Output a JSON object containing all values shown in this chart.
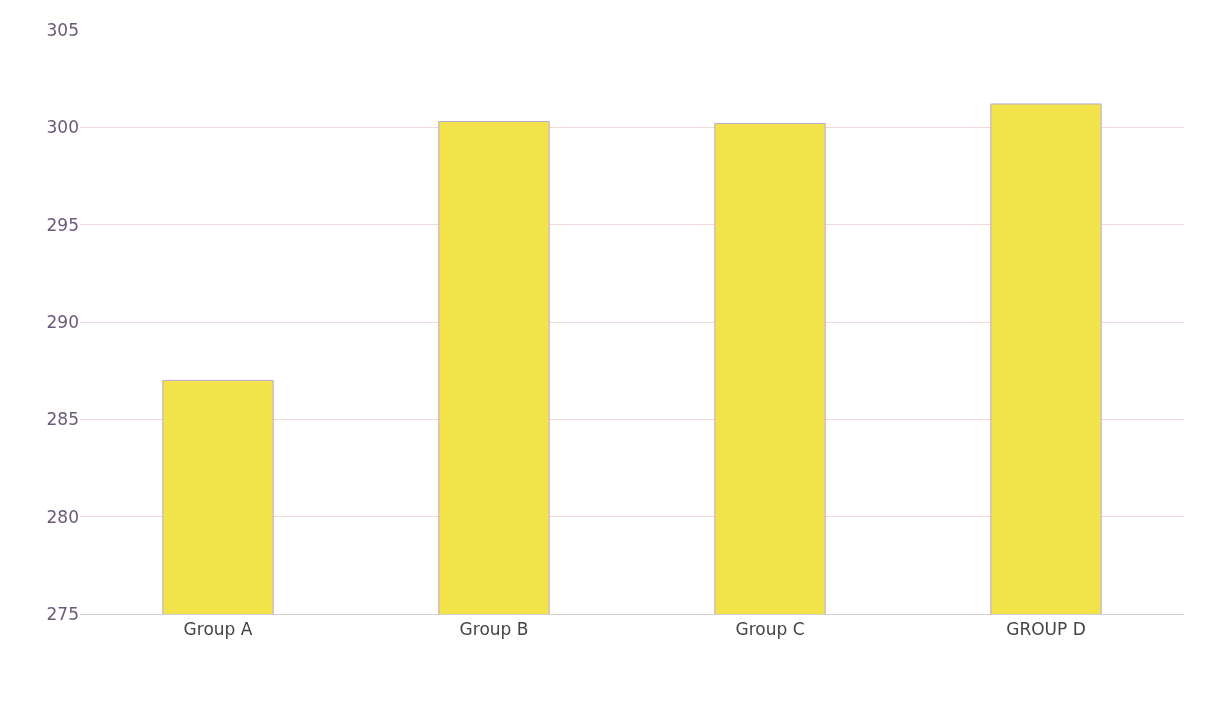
{
  "chart_data": {
    "type": "bar",
    "categories": [
      "Group A",
      "Group B",
      "Group C",
      "GROUP D"
    ],
    "values": [
      287,
      300.3,
      300.2,
      301.2
    ],
    "color": "#f3e34a",
    "ylim": [
      275,
      305
    ],
    "yticks": [
      275,
      280,
      285,
      290,
      295,
      300,
      305
    ],
    "grid": "y"
  }
}
